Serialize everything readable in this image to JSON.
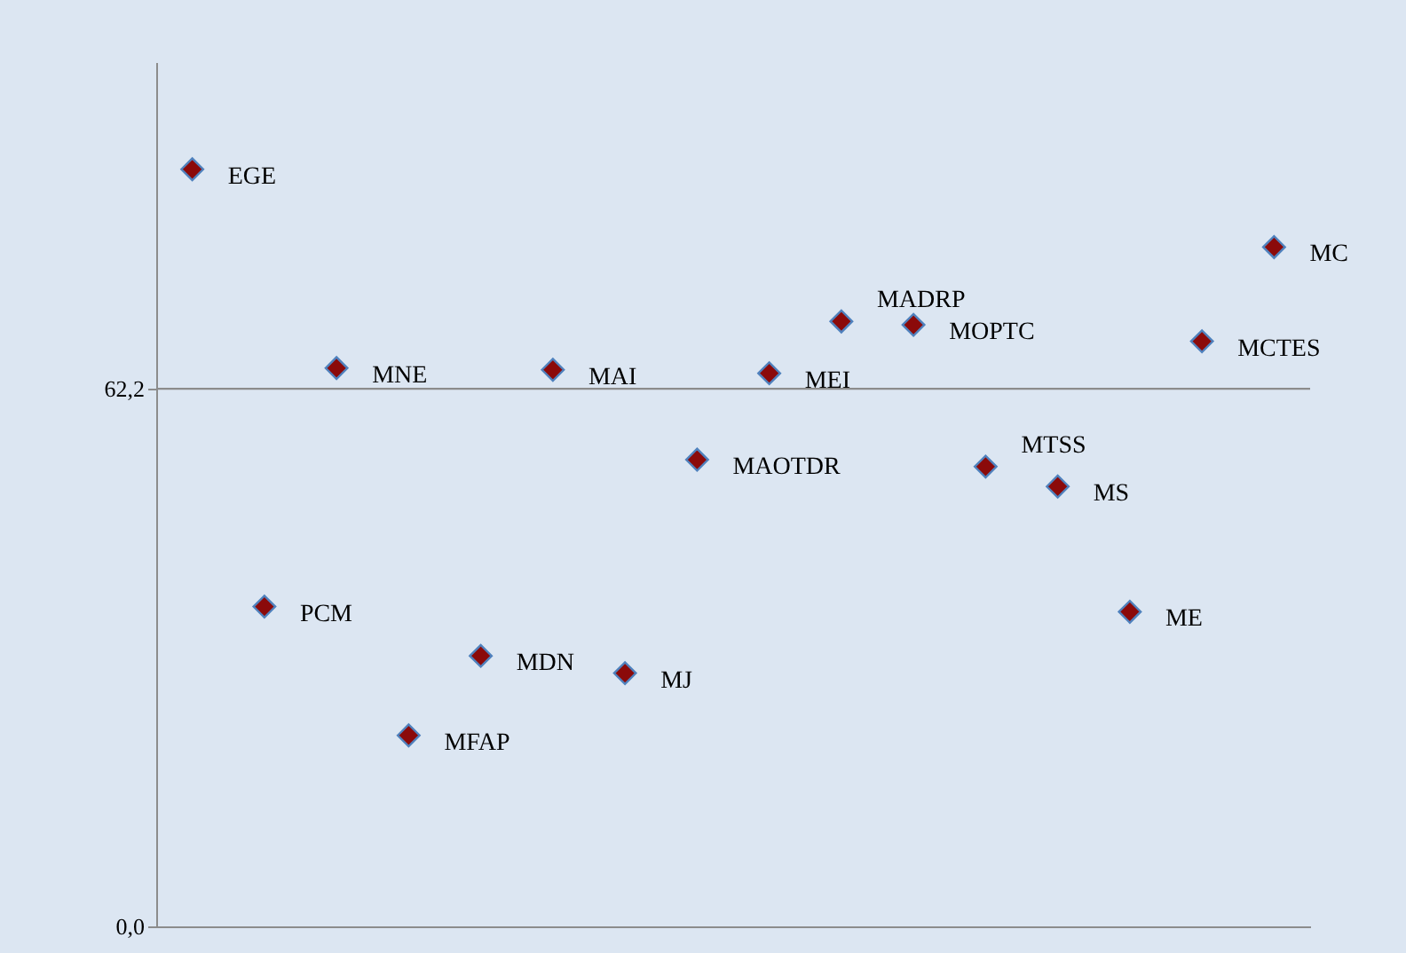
{
  "chart_data": {
    "type": "scatter",
    "categories": [
      null,
      null,
      null,
      null,
      null,
      null,
      null,
      null,
      null,
      null,
      null,
      null,
      null,
      null,
      null,
      null
    ],
    "series": [
      {
        "color": "#8b0a0a",
        "values": [
          87.6,
          37.0,
          64.6,
          22.1,
          31.3,
          64.4,
          29.3,
          54.0,
          64.0,
          70.0,
          69.6,
          53.2,
          50.9,
          36.4,
          67.7,
          78.6
        ]
      }
    ],
    "annotations": [
      "EGE",
      "PCM",
      "MNE",
      "MFAP",
      "MDN",
      "MAI",
      "MJ",
      "MAOTDR",
      "MEI",
      "MADRP",
      "MOPTC",
      "MTSS",
      "MS",
      "ME",
      "MCTES",
      "MC"
    ],
    "ylim": [
      0,
      100
    ],
    "yticks": [
      {
        "value": 0,
        "label": "0,0"
      },
      {
        "value": 62.2,
        "label": "62,2"
      }
    ],
    "ref_lines": [
      {
        "axis": "y",
        "value": 62.2,
        "label": null,
        "color": "#8c8c8c"
      }
    ],
    "tick_labels": "y",
    "marker": "diamond",
    "grid": false
  }
}
